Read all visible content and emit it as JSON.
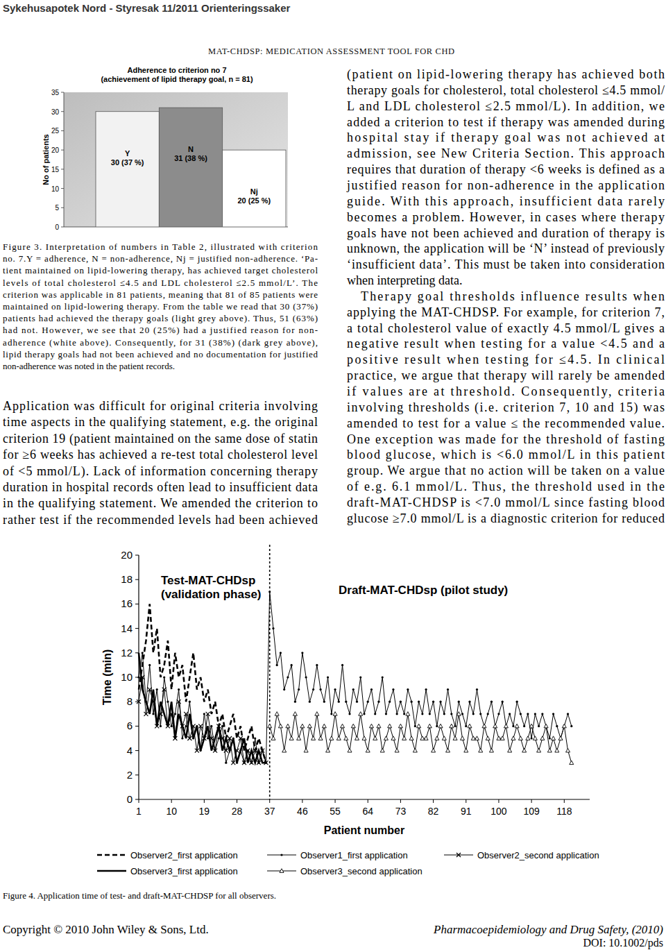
{
  "header": {
    "text": "Sykehusapotek Nord - Styresak 11/2011 Orienteringssaker"
  },
  "running_head": "MAT-CHDSP: MEDICATION ASSESSMENT TOOL FOR CHD",
  "chart_data": [
    {
      "type": "bar",
      "title": [
        "Adherence to criterion no 7",
        "(achievement of lipid therapy goal, n = 81)"
      ],
      "y_label": "No of patients",
      "categories": [
        "Y",
        "N",
        "Nj"
      ],
      "values": [
        30,
        31,
        20
      ],
      "value_labels": [
        "30 (37 %)",
        "31 (38 %)",
        "20 (25 %)"
      ],
      "colors": [
        "#f2f2f2",
        "#8c8c8c",
        "#ffffff"
      ],
      "ylim": [
        0,
        35
      ],
      "yticks": [
        0,
        5,
        10,
        15,
        20,
        25,
        30,
        35
      ],
      "grid": false,
      "data_labels": true,
      "tick_labels": "y"
    },
    {
      "type": "line",
      "x_label": "Patient number",
      "y_label": "Time (min)",
      "annotations": [
        [
          "Test-MAT-CHDsp",
          "(validation phase)"
        ],
        [
          "Draft-MAT-CHDsp (pilot study)"
        ]
      ],
      "phase_boundary": 37,
      "x": [
        1,
        2,
        3,
        4,
        5,
        6,
        7,
        8,
        9,
        10,
        11,
        12,
        13,
        14,
        15,
        16,
        17,
        18,
        19,
        20,
        21,
        22,
        23,
        24,
        25,
        26,
        27,
        28,
        29,
        30,
        31,
        32,
        33,
        34,
        35,
        36,
        37,
        38,
        39,
        40,
        41,
        42,
        43,
        44,
        45,
        46,
        47,
        48,
        49,
        50,
        51,
        52,
        53,
        54,
        55,
        56,
        57,
        58,
        59,
        60,
        61,
        62,
        63,
        64,
        65,
        66,
        67,
        68,
        69,
        70,
        71,
        72,
        73,
        74,
        75,
        76,
        77,
        78,
        79,
        80,
        81,
        82,
        83,
        84,
        85,
        86,
        87,
        88,
        89,
        90,
        91,
        92,
        93,
        94,
        95,
        96,
        97,
        98,
        99,
        100,
        101,
        102,
        103,
        104,
        105,
        106,
        107,
        108,
        109,
        110,
        111,
        112,
        113,
        114,
        115,
        116,
        117,
        118,
        119,
        120
      ],
      "xlim": [
        1,
        125
      ],
      "xticks": [
        1,
        10,
        19,
        28,
        37,
        46,
        55,
        64,
        73,
        82,
        91,
        100,
        109,
        118
      ],
      "ylim": [
        0,
        20
      ],
      "yticks": [
        0,
        2,
        4,
        6,
        8,
        10,
        12,
        14,
        16,
        18,
        20
      ],
      "grid": false,
      "legend": "bottom",
      "series": [
        {
          "name": "Observer2_first application",
          "color": "#000000",
          "line_style": "dashed",
          "marker": "none",
          "values": [
            9,
            11,
            13,
            16,
            12,
            14,
            10,
            11,
            13,
            9,
            12,
            10,
            11,
            8,
            10,
            12,
            9,
            10,
            8,
            9,
            7,
            8,
            6,
            7,
            5,
            6,
            7,
            5,
            6,
            4,
            5,
            6,
            4,
            5,
            4,
            3,
            null,
            null,
            null,
            null,
            null,
            null,
            null,
            null,
            null,
            null,
            null,
            null,
            null,
            null,
            null,
            null,
            null,
            null,
            null,
            null,
            null,
            null,
            null,
            null,
            null,
            null,
            null,
            null,
            null,
            null,
            null,
            null,
            null,
            null,
            null,
            null,
            null,
            null,
            null,
            null,
            null,
            null,
            null,
            null,
            null,
            null,
            null,
            null,
            null,
            null,
            null,
            null,
            null,
            null,
            null,
            null,
            null,
            null,
            null,
            null,
            null,
            null,
            null,
            null,
            null,
            null,
            null,
            null,
            null,
            null,
            null,
            null,
            null,
            null,
            null,
            null,
            null,
            null,
            null,
            null,
            null,
            null,
            null,
            null
          ]
        },
        {
          "name": "Observer1_first application",
          "color": "#000000",
          "line_style": "solid",
          "marker": "dot",
          "values": [
            10,
            12,
            8,
            11,
            7,
            9,
            6,
            10,
            8,
            6,
            7,
            9,
            5,
            6,
            8,
            5,
            6,
            4,
            7,
            5,
            6,
            4,
            5,
            6,
            3,
            4,
            5,
            3,
            4,
            3,
            4,
            3,
            5,
            3,
            4,
            3,
            17,
            14,
            11,
            12,
            9,
            10,
            11,
            8,
            9,
            12,
            10,
            8,
            9,
            11,
            9,
            8,
            10,
            7,
            9,
            8,
            11,
            8,
            7,
            9,
            8,
            10,
            7,
            8,
            9,
            7,
            8,
            10,
            7,
            8,
            9,
            7,
            8,
            7,
            9,
            8,
            6,
            8,
            7,
            9,
            7,
            8,
            6,
            8,
            7,
            9,
            7,
            6,
            8,
            7,
            6,
            8,
            7,
            9,
            7,
            6,
            7,
            8,
            6,
            7,
            8,
            6,
            7,
            6,
            8,
            7,
            6,
            7,
            5,
            7,
            6,
            7,
            6,
            5,
            7,
            6,
            5,
            6,
            7,
            6
          ]
        },
        {
          "name": "Observer2_second application",
          "color": "#000000",
          "line_style": "solid",
          "marker": "x",
          "values": [
            8,
            10,
            7,
            9,
            8,
            6,
            7,
            9,
            6,
            7,
            5,
            8,
            6,
            7,
            5,
            6,
            4,
            6,
            5,
            7,
            5,
            4,
            6,
            5,
            4,
            5,
            3,
            4,
            5,
            3,
            4,
            3,
            4,
            3,
            4,
            3,
            null,
            null,
            null,
            null,
            null,
            null,
            null,
            null,
            null,
            null,
            null,
            null,
            null,
            null,
            null,
            null,
            null,
            null,
            null,
            null,
            null,
            null,
            null,
            null,
            null,
            null,
            null,
            null,
            null,
            null,
            null,
            null,
            null,
            null,
            null,
            null,
            null,
            null,
            null,
            null,
            null,
            null,
            null,
            null,
            null,
            null,
            null,
            null,
            null,
            null,
            null,
            null,
            null,
            null,
            null,
            null,
            null,
            null,
            null,
            null,
            null,
            null,
            null,
            null,
            null,
            null,
            null,
            null,
            null,
            null,
            null,
            null,
            null,
            null,
            null,
            null,
            null,
            null,
            null,
            null,
            null,
            null,
            null,
            null
          ]
        },
        {
          "name": "Observer3_first application",
          "color": "#000000",
          "line_style": "thick",
          "marker": "none",
          "values": [
            12,
            9,
            8,
            7,
            9,
            6,
            8,
            7,
            6,
            8,
            5,
            7,
            6,
            5,
            7,
            5,
            6,
            4,
            5,
            6,
            4,
            5,
            6,
            4,
            5,
            4,
            5,
            3,
            4,
            5,
            3,
            4,
            3,
            4,
            3,
            3,
            null,
            null,
            null,
            null,
            null,
            null,
            null,
            null,
            null,
            null,
            null,
            null,
            null,
            null,
            null,
            null,
            null,
            null,
            null,
            null,
            null,
            null,
            null,
            null,
            null,
            null,
            null,
            null,
            null,
            null,
            null,
            null,
            null,
            null,
            null,
            null,
            null,
            null,
            null,
            null,
            null,
            null,
            null,
            null,
            null,
            null,
            null,
            null,
            null,
            null,
            null,
            null,
            null,
            null,
            null,
            null,
            null,
            null,
            null,
            null,
            null,
            null,
            null,
            null,
            null,
            null,
            null,
            null,
            null,
            null,
            null,
            null,
            null,
            null,
            null,
            null,
            null,
            null,
            null,
            null,
            null,
            null,
            null,
            null
          ]
        },
        {
          "name": "Observer3_second application",
          "color": "#000000",
          "line_style": "solid",
          "marker": "triangle",
          "values": [
            null,
            null,
            null,
            null,
            null,
            null,
            null,
            null,
            null,
            null,
            null,
            null,
            null,
            null,
            null,
            null,
            null,
            null,
            null,
            null,
            null,
            null,
            null,
            null,
            null,
            null,
            null,
            null,
            null,
            null,
            null,
            null,
            null,
            null,
            null,
            null,
            6,
            5,
            7,
            6,
            4,
            6,
            5,
            7,
            5,
            6,
            4,
            6,
            5,
            7,
            5,
            6,
            4,
            5,
            7,
            5,
            6,
            5,
            4,
            6,
            5,
            7,
            5,
            4,
            6,
            5,
            6,
            4,
            5,
            6,
            5,
            4,
            6,
            5,
            7,
            5,
            4,
            6,
            5,
            5,
            6,
            4,
            5,
            6,
            5,
            4,
            6,
            5,
            7,
            5,
            4,
            6,
            5,
            5,
            4,
            6,
            5,
            4,
            6,
            5,
            5,
            6,
            4,
            5,
            6,
            5,
            4,
            5,
            6,
            5,
            4,
            5,
            6,
            4,
            5,
            4,
            5,
            6,
            4,
            3
          ]
        }
      ]
    }
  ],
  "captions": {
    "figure_3": [
      "Figure 3.   Interpretation of numbers in Table 2, illustrated with criterion",
      "no. 7.Y = adherence, N = non-adherence, Nj = justified non-adherence. ‘Pa-",
      "tient maintained on lipid-lowering therapy, has achieved target cholesterol",
      "levels of total cholesterol ≤4.5 and LDL cholesterol ≤2.5 mmol/L’. The",
      "criterion was applicable in 81 patients, meaning that 81 of 85 patients were",
      "maintained on lipid-lowering therapy. From the table we read that 30 (37%)",
      "patients had achieved the therapy goals (light grey above). Thus, 51 (63%)",
      "had not. However, we see that 20 (25%) had a justified reason for non-",
      "adherence (white above). Consequently, for 31 (38%) (dark grey above),",
      "lipid therapy goals had not been achieved and no documentation for justified",
      "non-adherence was noted in the patient records."
    ],
    "figure_4": "Figure 4.   Application time of test- and draft-MAT-CHDSP for all observers."
  },
  "body": {
    "columns": [
      {
        "paragraphs": [
          [
            "Application was difficult for original criteria involving",
            "time aspects in the qualifying statement, e.g. the original",
            "criterion 19 (patient maintained on the same dose of statin",
            "for ≥6 weeks has achieved a re-test total cholesterol level",
            "of <5 mmol/L). Lack of information concerning therapy",
            "duration in hospital records often lead to insufficient data",
            "in the qualifying statement. We amended the criterion to",
            "rather test if the recommended levels had been achieved"
          ]
        ]
      },
      {
        "paragraphs": [
          [
            "(patient on lipid-lowering therapy has achieved both",
            "therapy goals for cholesterol, total cholesterol ≤4.5 mmol/",
            "L and LDL cholesterol ≤2.5 mmol/L). In addition, we",
            "added a criterion to test if therapy was amended during",
            "hospital stay if therapy goal was not achieved at",
            "admission, see New Criteria Section. This approach",
            "requires that duration of therapy <6 weeks is defined as a",
            "justified reason for non-adherence in the application",
            "guide. With this approach, insufficient data rarely",
            "becomes a problem. However, in cases where therapy",
            "goals have not been achieved and duration of therapy is",
            "unknown, the application will be ‘N’ instead of previously",
            "‘insufficient data’. This must be taken into consideration",
            "when interpreting data."
          ],
          [
            "Therapy goal thresholds influence results when",
            "applying the MAT-CHDSP. For example, for criterion 7,",
            "a total cholesterol value of exactly 4.5 mmol/L gives a",
            "negative result when testing for a value <4.5 and a",
            "positive result when testing for ≤4.5. In clinical",
            "practice, we argue that therapy will rarely be amended",
            "if values are at threshold. Consequently, criteria",
            "involving thresholds (i.e. criterion 7, 10 and 15) was",
            "amended to test for a value ≤ the recommended value.",
            "One exception was made for the threshold of fasting",
            "blood glucose, which is <6.0 mmol/L in this patient",
            "group. We argue that no action will be taken on a value",
            "of e.g. 6.1 mmol/L. Thus, the threshold used in the",
            "draft-MAT-CHDSP is <7.0 mmol/L since fasting blood",
            "glucose ≥7.0 mmol/L is a diagnostic criterion for reduced"
          ]
        ]
      }
    ]
  },
  "footer": {
    "copyright": "Copyright © 2010 John Wiley & Sons, Ltd.",
    "journal": "Pharmacoepidemiology and Drug Safety, (2010)",
    "doi": "DOI: 10.1002/pds"
  }
}
